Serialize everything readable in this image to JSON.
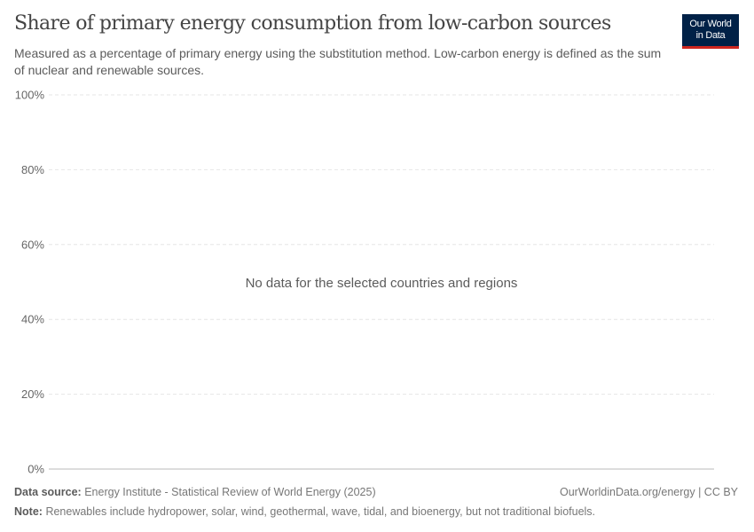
{
  "header": {
    "title": "Share of primary energy consumption from low-carbon sources",
    "subtitle": "Measured as a percentage of primary energy using the substitution method. Low-carbon energy is defined as the sum of nuclear and renewable sources.",
    "logo_text": "Our World in Data"
  },
  "chart_data": {
    "type": "line",
    "title": "Share of primary energy consumption from low-carbon sources",
    "ylim": [
      0,
      100
    ],
    "y_ticks": [
      {
        "value": 0,
        "label": "0%"
      },
      {
        "value": 20,
        "label": "20%"
      },
      {
        "value": 40,
        "label": "40%"
      },
      {
        "value": 60,
        "label": "60%"
      },
      {
        "value": 80,
        "label": "80%"
      },
      {
        "value": 100,
        "label": "100%"
      }
    ],
    "grid": true,
    "series": [],
    "message": "No data for the selected countries and regions"
  },
  "footer": {
    "source_label": "Data source:",
    "source_text": "Energy Institute - Statistical Review of World Energy (2025)",
    "credit": "OurWorldinData.org/energy | CC BY",
    "note_label": "Note:",
    "note_text": "Renewables include hydropower, solar, wind, geothermal, wave, tidal, and bioenergy, but not traditional biofuels."
  },
  "colors": {
    "logo_bg": "#002147",
    "logo_accent": "#ce261e"
  }
}
